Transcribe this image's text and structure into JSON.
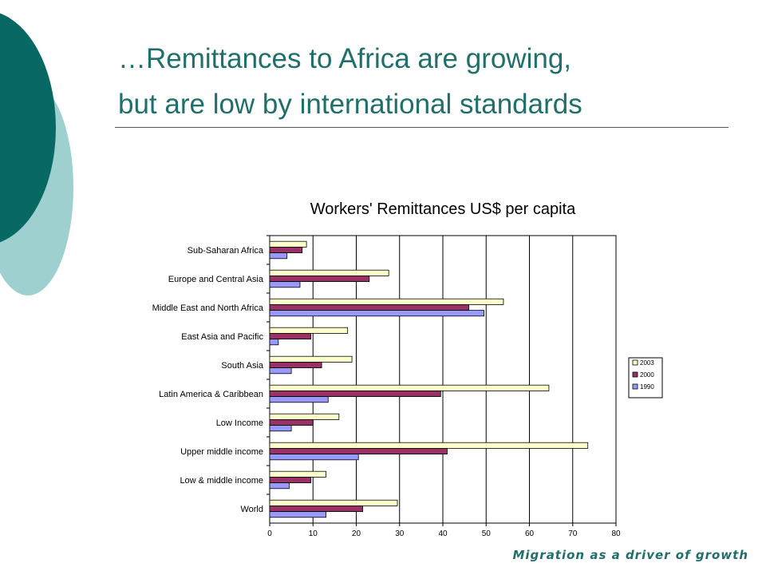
{
  "slide": {
    "title_line1": "…Remittances to Africa are growing,",
    "title_line2": "but are low by international standards",
    "footer": "Migration as a driver of growth",
    "colors": {
      "title": "#1f6f6b",
      "circle_dark": "#086863",
      "circle_light": "#9fd0d0"
    }
  },
  "chart_data": {
    "type": "bar",
    "orientation": "horizontal",
    "title": "Workers' Remittances US$ per capita",
    "categories": [
      "Sub-Saharan Africa",
      "Europe and Central Asia",
      "Middle East and North Africa",
      "East Asia and Pacific",
      "South Asia",
      "Latin America & Caribbean",
      "Low Income",
      "Upper middle income",
      "Low & middle income",
      "World"
    ],
    "series": [
      {
        "name": "2003",
        "color": "#ffffcc",
        "values": [
          8.5,
          27.5,
          54,
          18,
          19,
          64.5,
          16,
          73.5,
          13,
          29.5
        ]
      },
      {
        "name": "2000",
        "color": "#993366",
        "values": [
          7.5,
          23,
          46,
          9.5,
          12,
          39.5,
          10,
          41,
          9.5,
          21.5
        ]
      },
      {
        "name": "1990",
        "color": "#9999ff",
        "values": [
          4,
          7,
          49.5,
          2,
          5,
          13.5,
          5,
          20.5,
          4.5,
          13
        ]
      }
    ],
    "xlim": [
      0,
      80
    ],
    "xticks": [
      0,
      10,
      20,
      30,
      40,
      50,
      60,
      70,
      80
    ],
    "grid": true,
    "legend": "right"
  }
}
